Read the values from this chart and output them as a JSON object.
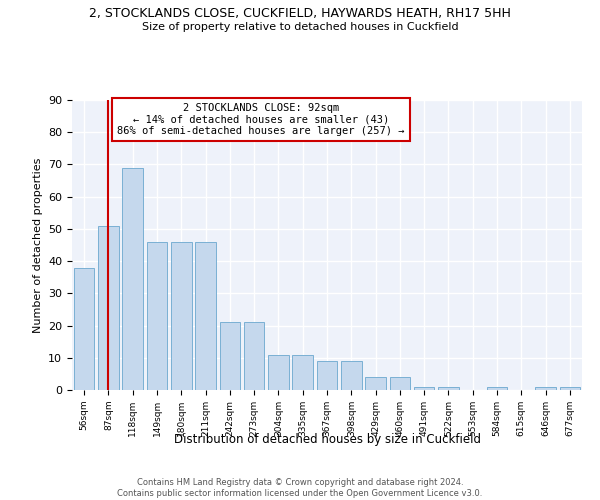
{
  "title": "2, STOCKLANDS CLOSE, CUCKFIELD, HAYWARDS HEATH, RH17 5HH",
  "subtitle": "Size of property relative to detached houses in Cuckfield",
  "xlabel": "Distribution of detached houses by size in Cuckfield",
  "ylabel": "Number of detached properties",
  "bar_color": "#c5d8ed",
  "bar_edge_color": "#7ab0d4",
  "background_color": "#eef2fa",
  "grid_color": "#ffffff",
  "annotation_box_color": "#cc0000",
  "vline_color": "#cc0000",
  "vline_x": 1,
  "annotation_lines": [
    "2 STOCKLANDS CLOSE: 92sqm",
    "← 14% of detached houses are smaller (43)",
    "86% of semi-detached houses are larger (257) →"
  ],
  "bins": [
    "56sqm",
    "87sqm",
    "118sqm",
    "149sqm",
    "180sqm",
    "211sqm",
    "242sqm",
    "273sqm",
    "304sqm",
    "335sqm",
    "367sqm",
    "398sqm",
    "429sqm",
    "460sqm",
    "491sqm",
    "522sqm",
    "553sqm",
    "584sqm",
    "615sqm",
    "646sqm",
    "677sqm"
  ],
  "bar_values": [
    38,
    51,
    69,
    46,
    46,
    46,
    21,
    21,
    11,
    11,
    9,
    9,
    4,
    4,
    1,
    1,
    0,
    1,
    0,
    1,
    1
  ],
  "ylim": [
    0,
    90
  ],
  "yticks": [
    0,
    10,
    20,
    30,
    40,
    50,
    60,
    70,
    80,
    90
  ],
  "footnote": "Contains HM Land Registry data © Crown copyright and database right 2024.\nContains public sector information licensed under the Open Government Licence v3.0."
}
